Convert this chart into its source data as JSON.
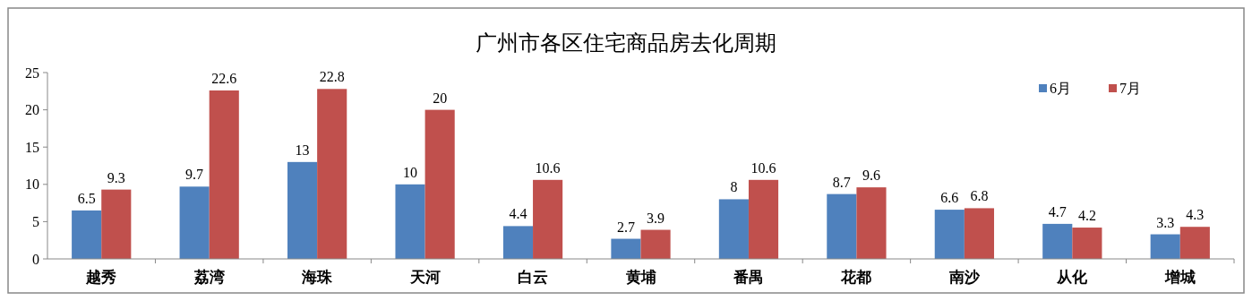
{
  "chart_data": {
    "type": "bar",
    "title": "广州市各区住宅商品房去化周期",
    "categories": [
      "越秀",
      "荔湾",
      "海珠",
      "天河",
      "白云",
      "黄埔",
      "番禺",
      "花都",
      "南沙",
      "从化",
      "增城"
    ],
    "series": [
      {
        "name": "6月",
        "color": "#4f81bd",
        "values": [
          6.5,
          9.7,
          13,
          10,
          4.4,
          2.7,
          8,
          8.7,
          6.6,
          4.7,
          3.3
        ]
      },
      {
        "name": "7月",
        "color": "#c0504d",
        "values": [
          9.3,
          22.6,
          22.8,
          20,
          10.6,
          3.9,
          10.6,
          9.6,
          6.8,
          4.2,
          4.3
        ]
      }
    ],
    "ylim": [
      0,
      25
    ],
    "yticks": [
      0,
      5,
      10,
      15,
      20,
      25
    ],
    "grid": false,
    "legend": "top right",
    "data_labels": true
  }
}
